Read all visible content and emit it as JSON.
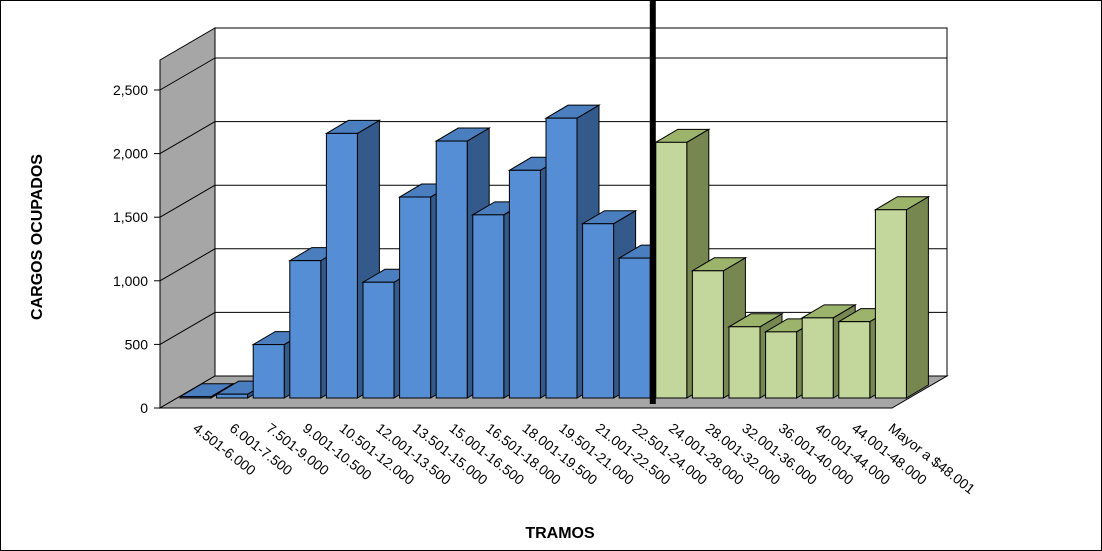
{
  "chart_data": {
    "type": "bar",
    "title": "",
    "xlabel": "TRAMOS",
    "ylabel": "CARGOS OCUPADOS",
    "ylim": [
      0,
      2500
    ],
    "yticks": [
      "0",
      "500",
      "1,000",
      "1,500",
      "2,000",
      "2,500"
    ],
    "grid": true,
    "legend": "none",
    "three_d": true,
    "categories": [
      "4.501-6.000",
      "6.001-7.500",
      "7.501-9.000",
      "9.001-10.500",
      "10.501-12.000",
      "12.001-13.500",
      "13.501-15.000",
      "15.001-16.500",
      "16.501-18.000",
      "18.001-19.500",
      "19.501-21.000",
      "21.001-22.500",
      "22.501-24.000",
      "24.001-28.000",
      "28.001-32.000",
      "32.001-36.000",
      "36.001-40.000",
      "40.001-44.000",
      "44.001-48.000",
      "Mayor a $48.001"
    ],
    "values": [
      10,
      30,
      420,
      1080,
      2080,
      910,
      1580,
      2020,
      1440,
      1790,
      2200,
      1370,
      1100,
      2010,
      1000,
      560,
      520,
      630,
      600,
      1480
    ],
    "group_split_index": 13,
    "colors": {
      "group1_front": "#558ed5",
      "group1_top": "#4a7ebf",
      "group1_side": "#335a8a",
      "group2_front": "#c3d69b",
      "group2_top": "#9bb36b",
      "group2_side": "#76884f",
      "wall": "#ffffff",
      "side_wall": "#a6a6a6",
      "floor": "#a6a6a6",
      "divider": "#000000"
    }
  }
}
